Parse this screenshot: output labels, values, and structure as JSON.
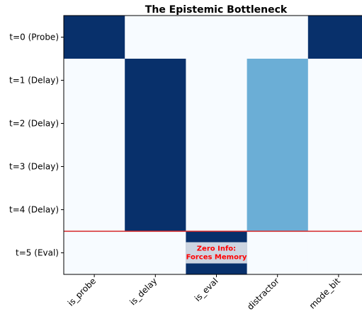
{
  "chart_data": {
    "type": "heatmap",
    "title": "The Epistemic Bottleneck",
    "xlabel": "",
    "ylabel": "",
    "x_categories": [
      "is_probe",
      "is_delay",
      "is_eval",
      "distractor",
      "mode_bit"
    ],
    "y_categories": [
      "t=0 (Probe)",
      "t=1 (Delay)",
      "t=2 (Delay)",
      "t=3 (Delay)",
      "t=4 (Delay)",
      "t=5 (Eval)"
    ],
    "values": [
      [
        1,
        0,
        0,
        0,
        1
      ],
      [
        0,
        1,
        0,
        0.5,
        0
      ],
      [
        0,
        1,
        0,
        0.5,
        0
      ],
      [
        0,
        1,
        0,
        0.5,
        0
      ],
      [
        0,
        1,
        0,
        0.5,
        0
      ],
      [
        0,
        0,
        1,
        0,
        0
      ]
    ],
    "colormap": "Blues",
    "color_low": "#f7fbff",
    "color_mid": "#6baed6",
    "color_high": "#08306b",
    "separator_after_row": "t=4 (Delay)",
    "separator_color": "#d62728",
    "annotation": {
      "text": "Zero Info:\nForces Memory",
      "color": "#ff0000",
      "box_color": "#ffffff",
      "row": "t=5 (Eval)",
      "column": "is_eval"
    }
  }
}
